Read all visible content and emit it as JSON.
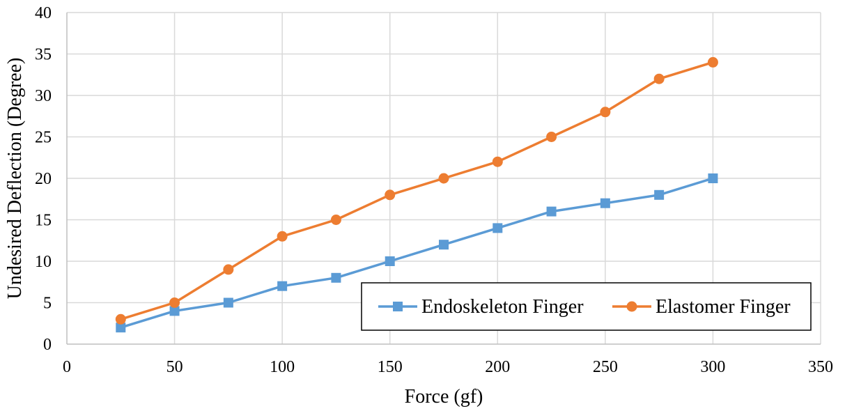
{
  "chart_data": {
    "type": "line",
    "title": "",
    "xlabel": "Force (gf)",
    "ylabel": "Undesired Deflection (Degree)",
    "xlim": [
      0,
      350
    ],
    "ylim": [
      0,
      40
    ],
    "xticks": [
      0,
      50,
      100,
      150,
      200,
      250,
      300,
      350
    ],
    "yticks": [
      0,
      5,
      10,
      15,
      20,
      25,
      30,
      35,
      40
    ],
    "grid": true,
    "legend_position": "bottom-right",
    "x": [
      25,
      50,
      75,
      100,
      125,
      150,
      175,
      200,
      225,
      250,
      275,
      300
    ],
    "series": [
      {
        "name": "Endoskeleton Finger",
        "marker": "square",
        "color": "#5b9bd5",
        "values": [
          2,
          4,
          5,
          7,
          8,
          10,
          12,
          14,
          16,
          17,
          18,
          20
        ]
      },
      {
        "name": "Elastomer Finger",
        "marker": "circle",
        "color": "#ed7d31",
        "values": [
          3,
          5,
          9,
          13,
          15,
          18,
          20,
          22,
          25,
          28,
          32,
          34
        ]
      }
    ]
  }
}
